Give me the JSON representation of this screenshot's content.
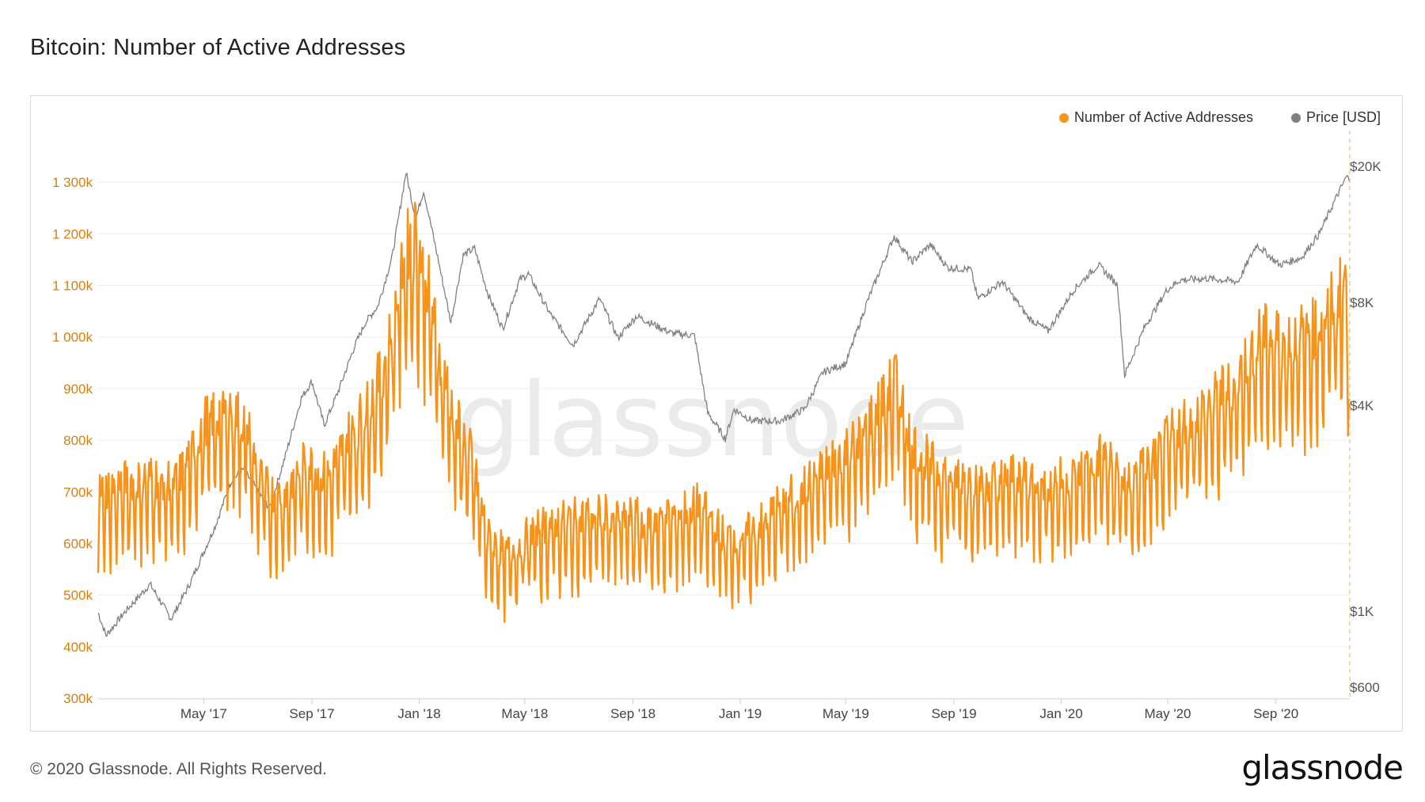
{
  "page": {
    "title": "Bitcoin: Number of Active Addresses",
    "footer": "© 2020 Glassnode. All Rights Reserved.",
    "brand": "glassnode",
    "watermark": "glassnode"
  },
  "colors": {
    "addresses": "#f7931a",
    "price": "#808080",
    "left_axis_text": "#d4800f",
    "grid": "#eeeeee"
  },
  "chart_data": {
    "type": "line",
    "title": "Bitcoin: Number of Active Addresses",
    "legend": [
      {
        "name": "Number of Active Addresses",
        "color": "#f7931a"
      },
      {
        "name": "Price [USD]",
        "color": "#808080"
      }
    ],
    "x_axis": {
      "range": [
        "2017-01-01",
        "2020-11-24"
      ],
      "ticks": [
        {
          "date": "2017-05-01",
          "label": "May '17"
        },
        {
          "date": "2017-09-01",
          "label": "Sep '17"
        },
        {
          "date": "2018-01-01",
          "label": "Jan '18"
        },
        {
          "date": "2018-05-01",
          "label": "May '18"
        },
        {
          "date": "2018-09-01",
          "label": "Sep '18"
        },
        {
          "date": "2019-01-01",
          "label": "Jan '19"
        },
        {
          "date": "2019-05-01",
          "label": "May '19"
        },
        {
          "date": "2019-09-01",
          "label": "Sep '19"
        },
        {
          "date": "2020-01-01",
          "label": "Jan '20"
        },
        {
          "date": "2020-05-01",
          "label": "May '20"
        },
        {
          "date": "2020-09-01",
          "label": "Sep '20"
        }
      ]
    },
    "y_left": {
      "name": "Number of Active Addresses",
      "scale": "linear",
      "range": [
        300000,
        1400000
      ],
      "ticks": [
        {
          "value": 300000,
          "label": "300k"
        },
        {
          "value": 400000,
          "label": "400k"
        },
        {
          "value": 500000,
          "label": "500k"
        },
        {
          "value": 600000,
          "label": "600k"
        },
        {
          "value": 700000,
          "label": "700k"
        },
        {
          "value": 800000,
          "label": "800k"
        },
        {
          "value": 900000,
          "label": "900k"
        },
        {
          "value": 1000000,
          "label": "1 000k"
        },
        {
          "value": 1100000,
          "label": "1 100k"
        },
        {
          "value": 1200000,
          "label": "1 200k"
        },
        {
          "value": 1300000,
          "label": "1 300k"
        }
      ]
    },
    "y_right": {
      "name": "Price [USD]",
      "scale": "log",
      "range": [
        600,
        20000
      ],
      "ticks": [
        {
          "value": 600,
          "label": "$600"
        },
        {
          "value": 1000,
          "label": "$1K"
        },
        {
          "value": 4000,
          "label": "$4K"
        },
        {
          "value": 8000,
          "label": "$8K"
        },
        {
          "value": 20000,
          "label": "$20K"
        }
      ]
    },
    "series": [
      {
        "name": "Number of Active Addresses",
        "axis": "left",
        "weekly_swing": 0.11,
        "points": [
          [
            "2017-01-01",
            660000
          ],
          [
            "2017-02-01",
            680000
          ],
          [
            "2017-03-01",
            690000
          ],
          [
            "2017-04-01",
            680000
          ],
          [
            "2017-05-01",
            790000
          ],
          [
            "2017-06-01",
            820000
          ],
          [
            "2017-06-20",
            780000
          ],
          [
            "2017-07-01",
            700000
          ],
          [
            "2017-07-15",
            660000
          ],
          [
            "2017-08-01",
            660000
          ],
          [
            "2017-08-20",
            710000
          ],
          [
            "2017-09-01",
            710000
          ],
          [
            "2017-09-20",
            690000
          ],
          [
            "2017-10-10",
            760000
          ],
          [
            "2017-11-01",
            810000
          ],
          [
            "2017-11-20",
            880000
          ],
          [
            "2017-12-01",
            960000
          ],
          [
            "2017-12-15",
            1100000
          ],
          [
            "2017-12-28",
            1140000
          ],
          [
            "2018-01-10",
            1050000
          ],
          [
            "2018-01-25",
            910000
          ],
          [
            "2018-02-10",
            800000
          ],
          [
            "2018-03-01",
            730000
          ],
          [
            "2018-03-20",
            580000
          ],
          [
            "2018-04-10",
            550000
          ],
          [
            "2018-05-01",
            580000
          ],
          [
            "2018-05-20",
            600000
          ],
          [
            "2018-06-15",
            610000
          ],
          [
            "2018-07-15",
            620000
          ],
          [
            "2018-08-15",
            620000
          ],
          [
            "2018-09-15",
            610000
          ],
          [
            "2018-10-15",
            620000
          ],
          [
            "2018-11-15",
            640000
          ],
          [
            "2018-12-15",
            580000
          ],
          [
            "2019-01-15",
            590000
          ],
          [
            "2019-02-15",
            640000
          ],
          [
            "2019-03-15",
            670000
          ],
          [
            "2019-04-15",
            720000
          ],
          [
            "2019-05-15",
            760000
          ],
          [
            "2019-06-15",
            840000
          ],
          [
            "2019-06-28",
            880000
          ],
          [
            "2019-07-15",
            750000
          ],
          [
            "2019-08-15",
            700000
          ],
          [
            "2019-09-15",
            690000
          ],
          [
            "2019-10-15",
            680000
          ],
          [
            "2019-11-15",
            700000
          ],
          [
            "2019-12-15",
            680000
          ],
          [
            "2020-01-15",
            690000
          ],
          [
            "2020-02-15",
            730000
          ],
          [
            "2020-03-15",
            680000
          ],
          [
            "2020-04-15",
            720000
          ],
          [
            "2020-05-15",
            790000
          ],
          [
            "2020-06-15",
            820000
          ],
          [
            "2020-07-15",
            860000
          ],
          [
            "2020-08-15",
            950000
          ],
          [
            "2020-09-15",
            940000
          ],
          [
            "2020-10-15",
            960000
          ],
          [
            "2020-11-10",
            1020000
          ],
          [
            "2020-11-20",
            1060000
          ],
          [
            "2020-11-24",
            860000
          ]
        ]
      },
      {
        "name": "Price [USD]",
        "axis": "right",
        "points": [
          [
            "2017-01-01",
            990
          ],
          [
            "2017-01-10",
            850
          ],
          [
            "2017-02-01",
            1000
          ],
          [
            "2017-03-01",
            1200
          ],
          [
            "2017-03-25",
            950
          ],
          [
            "2017-04-15",
            1200
          ],
          [
            "2017-05-15",
            1800
          ],
          [
            "2017-06-01",
            2400
          ],
          [
            "2017-06-15",
            2600
          ],
          [
            "2017-07-15",
            2000
          ],
          [
            "2017-08-01",
            2800
          ],
          [
            "2017-08-20",
            4200
          ],
          [
            "2017-09-01",
            4700
          ],
          [
            "2017-09-15",
            3500
          ],
          [
            "2017-10-01",
            4400
          ],
          [
            "2017-10-20",
            6000
          ],
          [
            "2017-11-01",
            7000
          ],
          [
            "2017-11-15",
            7800
          ],
          [
            "2017-12-01",
            10800
          ],
          [
            "2017-12-17",
            19200
          ],
          [
            "2017-12-28",
            14000
          ],
          [
            "2018-01-06",
            17000
          ],
          [
            "2018-01-20",
            11500
          ],
          [
            "2018-02-06",
            7000
          ],
          [
            "2018-02-20",
            11000
          ],
          [
            "2018-03-05",
            11500
          ],
          [
            "2018-03-20",
            8500
          ],
          [
            "2018-04-06",
            6700
          ],
          [
            "2018-04-25",
            9300
          ],
          [
            "2018-05-05",
            9700
          ],
          [
            "2018-05-30",
            7400
          ],
          [
            "2018-06-25",
            6000
          ],
          [
            "2018-07-25",
            8200
          ],
          [
            "2018-08-15",
            6300
          ],
          [
            "2018-09-05",
            7300
          ],
          [
            "2018-10-15",
            6500
          ],
          [
            "2018-11-10",
            6400
          ],
          [
            "2018-11-25",
            3800
          ],
          [
            "2018-12-15",
            3200
          ],
          [
            "2018-12-25",
            3900
          ],
          [
            "2019-01-15",
            3600
          ],
          [
            "2019-02-15",
            3600
          ],
          [
            "2019-03-15",
            3900
          ],
          [
            "2019-04-05",
            5000
          ],
          [
            "2019-05-01",
            5300
          ],
          [
            "2019-05-25",
            8000
          ],
          [
            "2019-06-25",
            12500
          ],
          [
            "2019-07-15",
            10500
          ],
          [
            "2019-08-05",
            11800
          ],
          [
            "2019-08-25",
            10100
          ],
          [
            "2019-09-20",
            10000
          ],
          [
            "2019-09-28",
            8200
          ],
          [
            "2019-10-26",
            9200
          ],
          [
            "2019-11-25",
            7200
          ],
          [
            "2019-12-17",
            6600
          ],
          [
            "2020-01-15",
            8700
          ],
          [
            "2020-02-12",
            10300
          ],
          [
            "2020-03-05",
            9000
          ],
          [
            "2020-03-13",
            4900
          ],
          [
            "2020-04-05",
            6800
          ],
          [
            "2020-04-30",
            8700
          ],
          [
            "2020-05-15",
            9300
          ],
          [
            "2020-06-15",
            9400
          ],
          [
            "2020-07-20",
            9200
          ],
          [
            "2020-08-10",
            11800
          ],
          [
            "2020-09-05",
            10300
          ],
          [
            "2020-09-30",
            10800
          ],
          [
            "2020-10-21",
            12800
          ],
          [
            "2020-11-05",
            15500
          ],
          [
            "2020-11-20",
            18600
          ],
          [
            "2020-11-24",
            18400
          ]
        ]
      }
    ]
  }
}
